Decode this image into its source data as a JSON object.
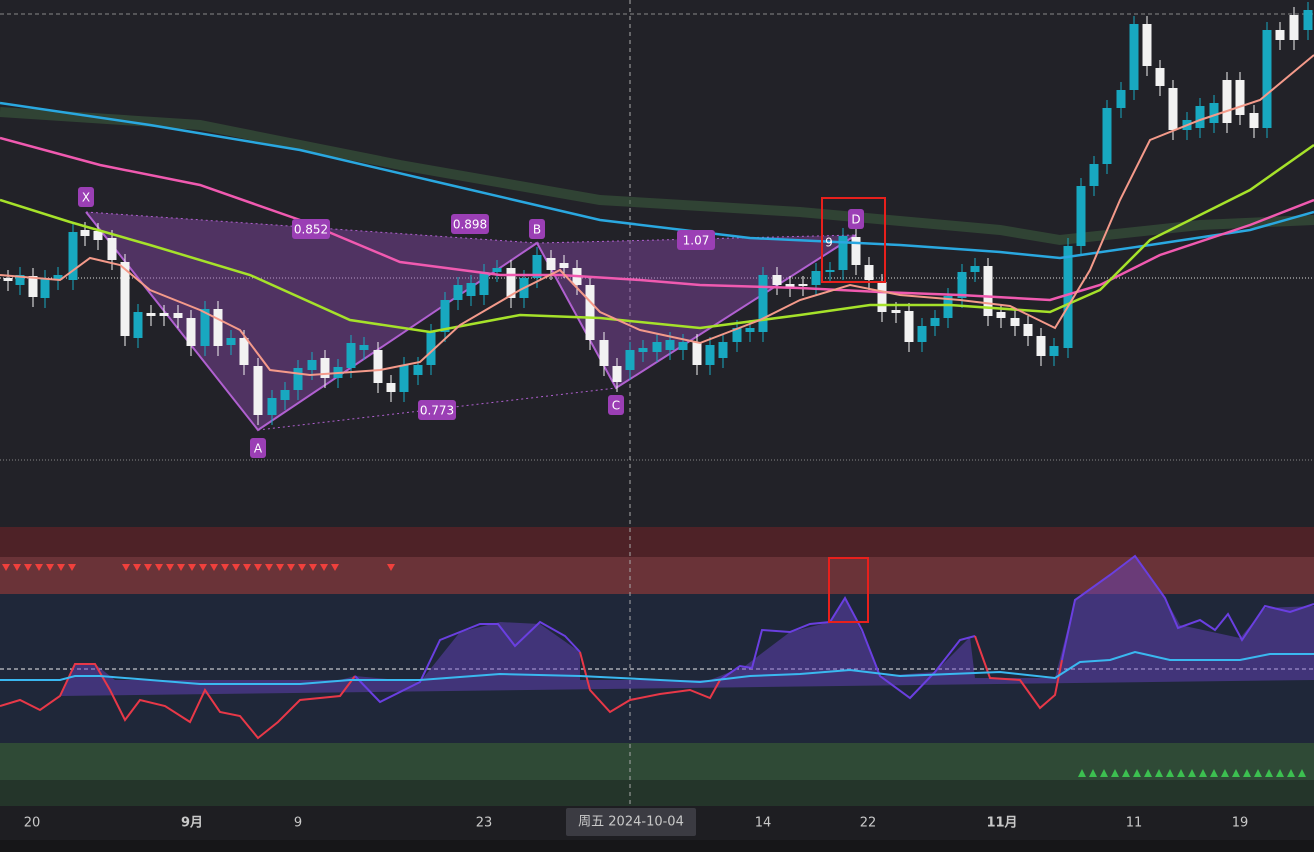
{
  "x_axis": {
    "labels": [
      "20",
      "9月",
      "9",
      "23",
      "14",
      "22",
      "11月",
      "11",
      "19"
    ]
  },
  "crosshair_label": "周五 2024-10-04",
  "pattern": {
    "points": [
      "X",
      "A",
      "B",
      "C",
      "D"
    ],
    "ratios": [
      "0.852",
      "0.898",
      "1.07",
      "0.773"
    ]
  },
  "count_label": "9"
}
